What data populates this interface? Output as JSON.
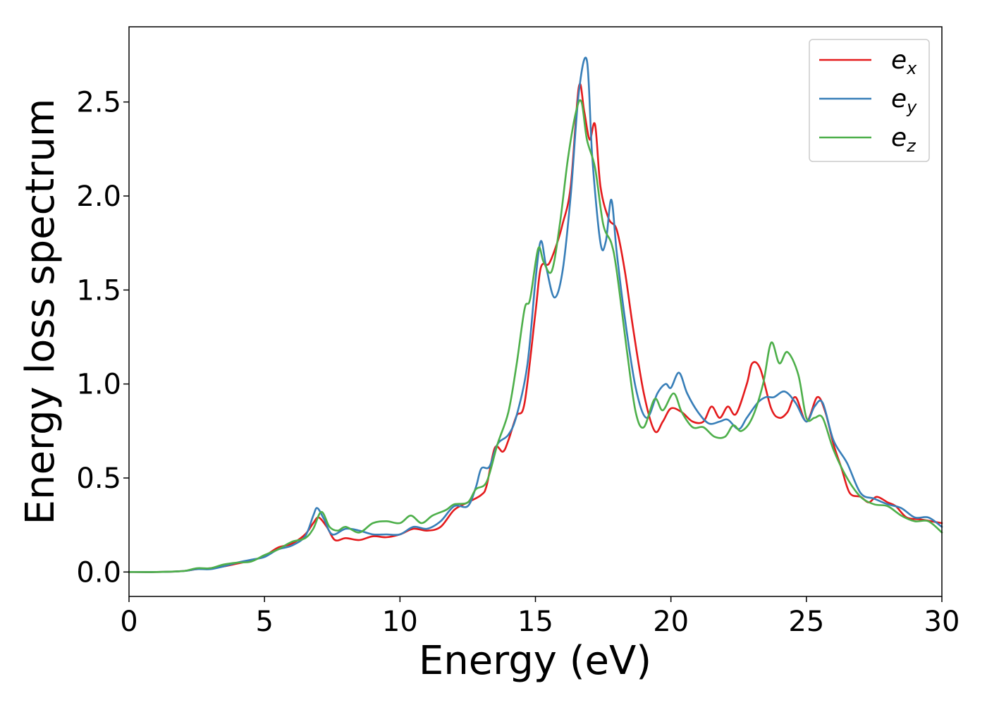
{
  "chart_data": {
    "type": "line",
    "xlabel": "Energy (eV)",
    "ylabel": "Energy loss spectrum",
    "xlim": [
      0,
      30
    ],
    "ylim": [
      -0.13,
      2.9
    ],
    "xticks": [
      "0",
      "5",
      "10",
      "15",
      "20",
      "25",
      "30"
    ],
    "yticks": [
      "0.0",
      "0.5",
      "1.0",
      "1.5",
      "2.0",
      "2.5"
    ],
    "grid": false,
    "legend_position": "top-right",
    "series": [
      {
        "name": "e_x",
        "base": "e",
        "sub": "x",
        "color": "#e41a1c",
        "points": [
          [
            0,
            0
          ],
          [
            1,
            0
          ],
          [
            2,
            0.005
          ],
          [
            2.5,
            0.015
          ],
          [
            3,
            0.02
          ],
          [
            3.5,
            0.03
          ],
          [
            4,
            0.045
          ],
          [
            4.5,
            0.06
          ],
          [
            5,
            0.085
          ],
          [
            5.5,
            0.13
          ],
          [
            6,
            0.15
          ],
          [
            6.5,
            0.2
          ],
          [
            6.8,
            0.26
          ],
          [
            7,
            0.29
          ],
          [
            7.3,
            0.24
          ],
          [
            7.6,
            0.17
          ],
          [
            8,
            0.18
          ],
          [
            8.5,
            0.17
          ],
          [
            9,
            0.19
          ],
          [
            9.5,
            0.185
          ],
          [
            10,
            0.2
          ],
          [
            10.5,
            0.23
          ],
          [
            11,
            0.22
          ],
          [
            11.5,
            0.24
          ],
          [
            12,
            0.33
          ],
          [
            12.5,
            0.37
          ],
          [
            13,
            0.41
          ],
          [
            13.2,
            0.46
          ],
          [
            13.5,
            0.66
          ],
          [
            13.8,
            0.64
          ],
          [
            14,
            0.7
          ],
          [
            14.3,
            0.83
          ],
          [
            14.6,
            0.9
          ],
          [
            15,
            1.38
          ],
          [
            15.2,
            1.62
          ],
          [
            15.5,
            1.64
          ],
          [
            15.8,
            1.75
          ],
          [
            16,
            1.85
          ],
          [
            16.3,
            2.05
          ],
          [
            16.6,
            2.58
          ],
          [
            16.8,
            2.45
          ],
          [
            17,
            2.3
          ],
          [
            17.2,
            2.38
          ],
          [
            17.4,
            2.05
          ],
          [
            17.7,
            1.88
          ],
          [
            18,
            1.82
          ],
          [
            18.3,
            1.6
          ],
          [
            18.6,
            1.3
          ],
          [
            19,
            0.95
          ],
          [
            19.4,
            0.75
          ],
          [
            19.7,
            0.8
          ],
          [
            20,
            0.87
          ],
          [
            20.4,
            0.85
          ],
          [
            20.8,
            0.8
          ],
          [
            21.2,
            0.8
          ],
          [
            21.5,
            0.88
          ],
          [
            21.8,
            0.82
          ],
          [
            22.1,
            0.88
          ],
          [
            22.4,
            0.84
          ],
          [
            22.8,
            1.0
          ],
          [
            23,
            1.11
          ],
          [
            23.3,
            1.08
          ],
          [
            23.7,
            0.87
          ],
          [
            24,
            0.82
          ],
          [
            24.3,
            0.85
          ],
          [
            24.6,
            0.93
          ],
          [
            25,
            0.8
          ],
          [
            25.4,
            0.93
          ],
          [
            25.7,
            0.85
          ],
          [
            26,
            0.68
          ],
          [
            26.3,
            0.55
          ],
          [
            26.6,
            0.42
          ],
          [
            27,
            0.4
          ],
          [
            27.3,
            0.37
          ],
          [
            27.6,
            0.4
          ],
          [
            28,
            0.37
          ],
          [
            28.3,
            0.35
          ],
          [
            28.7,
            0.29
          ],
          [
            29.2,
            0.28
          ],
          [
            29.6,
            0.27
          ],
          [
            30,
            0.26
          ]
        ]
      },
      {
        "name": "e_y",
        "base": "e",
        "sub": "y",
        "color": "#377eb8",
        "points": [
          [
            0,
            0
          ],
          [
            1,
            0
          ],
          [
            2,
            0.005
          ],
          [
            2.5,
            0.015
          ],
          [
            3,
            0.015
          ],
          [
            3.5,
            0.03
          ],
          [
            4,
            0.05
          ],
          [
            4.5,
            0.065
          ],
          [
            5,
            0.08
          ],
          [
            5.5,
            0.12
          ],
          [
            6,
            0.14
          ],
          [
            6.5,
            0.19
          ],
          [
            6.8,
            0.3
          ],
          [
            6.95,
            0.34
          ],
          [
            7.2,
            0.28
          ],
          [
            7.5,
            0.2
          ],
          [
            8,
            0.23
          ],
          [
            8.5,
            0.22
          ],
          [
            9,
            0.2
          ],
          [
            9.5,
            0.2
          ],
          [
            10,
            0.2
          ],
          [
            10.5,
            0.24
          ],
          [
            11,
            0.23
          ],
          [
            11.5,
            0.27
          ],
          [
            12,
            0.35
          ],
          [
            12.5,
            0.35
          ],
          [
            12.8,
            0.45
          ],
          [
            13,
            0.55
          ],
          [
            13.3,
            0.56
          ],
          [
            13.6,
            0.68
          ],
          [
            14,
            0.73
          ],
          [
            14.3,
            0.83
          ],
          [
            14.7,
            1.1
          ],
          [
            15,
            1.55
          ],
          [
            15.2,
            1.76
          ],
          [
            15.4,
            1.62
          ],
          [
            15.7,
            1.46
          ],
          [
            16,
            1.6
          ],
          [
            16.3,
            2.0
          ],
          [
            16.6,
            2.55
          ],
          [
            16.9,
            2.72
          ],
          [
            17.1,
            2.2
          ],
          [
            17.4,
            1.75
          ],
          [
            17.6,
            1.76
          ],
          [
            17.8,
            1.98
          ],
          [
            18,
            1.7
          ],
          [
            18.3,
            1.35
          ],
          [
            18.7,
            0.98
          ],
          [
            19.1,
            0.82
          ],
          [
            19.5,
            0.95
          ],
          [
            19.8,
            1.0
          ],
          [
            20,
            0.98
          ],
          [
            20.3,
            1.06
          ],
          [
            20.6,
            0.95
          ],
          [
            21,
            0.85
          ],
          [
            21.4,
            0.79
          ],
          [
            21.8,
            0.8
          ],
          [
            22.1,
            0.81
          ],
          [
            22.5,
            0.76
          ],
          [
            22.8,
            0.82
          ],
          [
            23.2,
            0.9
          ],
          [
            23.5,
            0.93
          ],
          [
            23.8,
            0.93
          ],
          [
            24.2,
            0.96
          ],
          [
            24.6,
            0.9
          ],
          [
            25,
            0.8
          ],
          [
            25.3,
            0.88
          ],
          [
            25.6,
            0.9
          ],
          [
            26,
            0.7
          ],
          [
            26.5,
            0.58
          ],
          [
            27,
            0.42
          ],
          [
            27.5,
            0.39
          ],
          [
            28,
            0.36
          ],
          [
            28.5,
            0.34
          ],
          [
            29,
            0.29
          ],
          [
            29.5,
            0.29
          ],
          [
            30,
            0.24
          ]
        ]
      },
      {
        "name": "e_z",
        "base": "e",
        "sub": "z",
        "color": "#4daf4a",
        "points": [
          [
            0,
            0
          ],
          [
            1,
            0
          ],
          [
            2,
            0.005
          ],
          [
            2.5,
            0.02
          ],
          [
            3,
            0.02
          ],
          [
            3.5,
            0.04
          ],
          [
            4,
            0.05
          ],
          [
            4.5,
            0.055
          ],
          [
            5,
            0.09
          ],
          [
            5.5,
            0.12
          ],
          [
            6,
            0.16
          ],
          [
            6.5,
            0.18
          ],
          [
            6.8,
            0.23
          ],
          [
            7.1,
            0.32
          ],
          [
            7.4,
            0.24
          ],
          [
            7.7,
            0.22
          ],
          [
            8,
            0.24
          ],
          [
            8.5,
            0.21
          ],
          [
            9,
            0.26
          ],
          [
            9.5,
            0.27
          ],
          [
            10,
            0.26
          ],
          [
            10.4,
            0.3
          ],
          [
            10.8,
            0.26
          ],
          [
            11.2,
            0.3
          ],
          [
            11.7,
            0.33
          ],
          [
            12,
            0.36
          ],
          [
            12.5,
            0.37
          ],
          [
            12.8,
            0.44
          ],
          [
            13.2,
            0.48
          ],
          [
            13.6,
            0.68
          ],
          [
            14,
            0.85
          ],
          [
            14.3,
            1.1
          ],
          [
            14.6,
            1.4
          ],
          [
            14.8,
            1.45
          ],
          [
            15.1,
            1.72
          ],
          [
            15.3,
            1.65
          ],
          [
            15.6,
            1.6
          ],
          [
            15.9,
            1.85
          ],
          [
            16.2,
            2.2
          ],
          [
            16.5,
            2.45
          ],
          [
            16.7,
            2.5
          ],
          [
            16.9,
            2.3
          ],
          [
            17.2,
            2.15
          ],
          [
            17.5,
            1.85
          ],
          [
            17.8,
            1.75
          ],
          [
            18,
            1.6
          ],
          [
            18.4,
            1.15
          ],
          [
            18.7,
            0.85
          ],
          [
            19,
            0.77
          ],
          [
            19.4,
            0.92
          ],
          [
            19.7,
            0.86
          ],
          [
            20.1,
            0.95
          ],
          [
            20.4,
            0.85
          ],
          [
            20.8,
            0.77
          ],
          [
            21.2,
            0.77
          ],
          [
            21.6,
            0.72
          ],
          [
            22,
            0.72
          ],
          [
            22.3,
            0.78
          ],
          [
            22.6,
            0.75
          ],
          [
            23,
            0.82
          ],
          [
            23.4,
            1.0
          ],
          [
            23.7,
            1.22
          ],
          [
            24,
            1.11
          ],
          [
            24.3,
            1.17
          ],
          [
            24.7,
            1.05
          ],
          [
            25,
            0.82
          ],
          [
            25.3,
            0.82
          ],
          [
            25.6,
            0.82
          ],
          [
            26,
            0.65
          ],
          [
            26.5,
            0.5
          ],
          [
            27,
            0.4
          ],
          [
            27.5,
            0.36
          ],
          [
            28,
            0.35
          ],
          [
            28.5,
            0.3
          ],
          [
            29,
            0.27
          ],
          [
            29.5,
            0.27
          ],
          [
            30,
            0.21
          ]
        ]
      }
    ]
  }
}
